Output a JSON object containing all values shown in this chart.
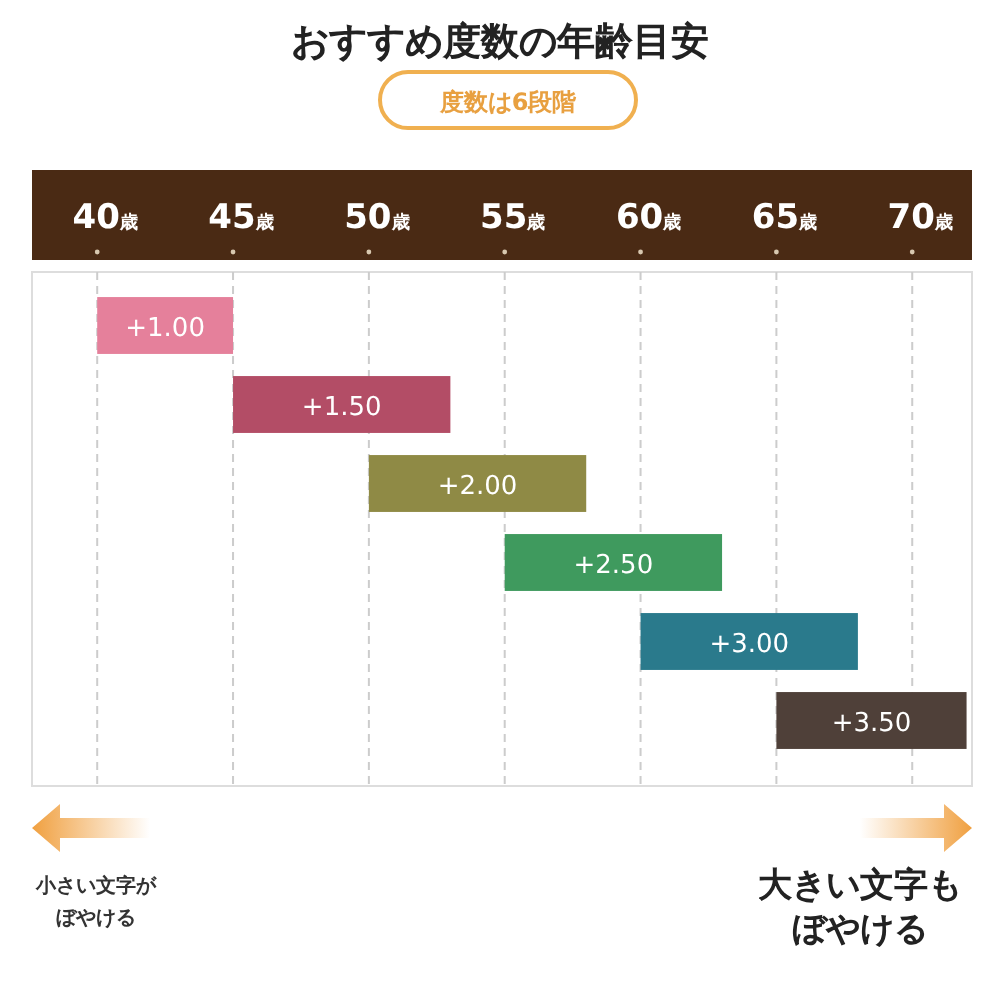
{
  "chart_data": {
    "type": "bar",
    "orientation": "horizontal",
    "title": "おすすめ度数の年齢目安",
    "subtitle": "度数は6段階",
    "categories": [
      "+1.00",
      "+1.50",
      "+2.00",
      "+2.50",
      "+3.00",
      "+3.50"
    ],
    "base": [
      40,
      45,
      50,
      55,
      60,
      65
    ],
    "values": [
      5,
      8,
      8,
      8,
      8,
      7
    ],
    "colors": [
      "#e5809b",
      "#b34d66",
      "#8f8a45",
      "#3f9a5e",
      "#2a7a8c",
      "#4f4039"
    ],
    "xlim": [
      37.6,
      72.2
    ],
    "xticks": [
      {
        "value": 40,
        "label": "40歳"
      },
      {
        "value": 45,
        "label": "45歳"
      },
      {
        "value": 50,
        "label": "50歳"
      },
      {
        "value": 55,
        "label": "55歳"
      },
      {
        "value": 60,
        "label": "60歳"
      },
      {
        "value": 65,
        "label": "65歳"
      },
      {
        "value": 70,
        "label": "70歳"
      }
    ],
    "grid": "x",
    "tick_labels": "x",
    "annotations": [
      "小さい文字がぼやける",
      "大きい文字もぼやける"
    ]
  }
}
